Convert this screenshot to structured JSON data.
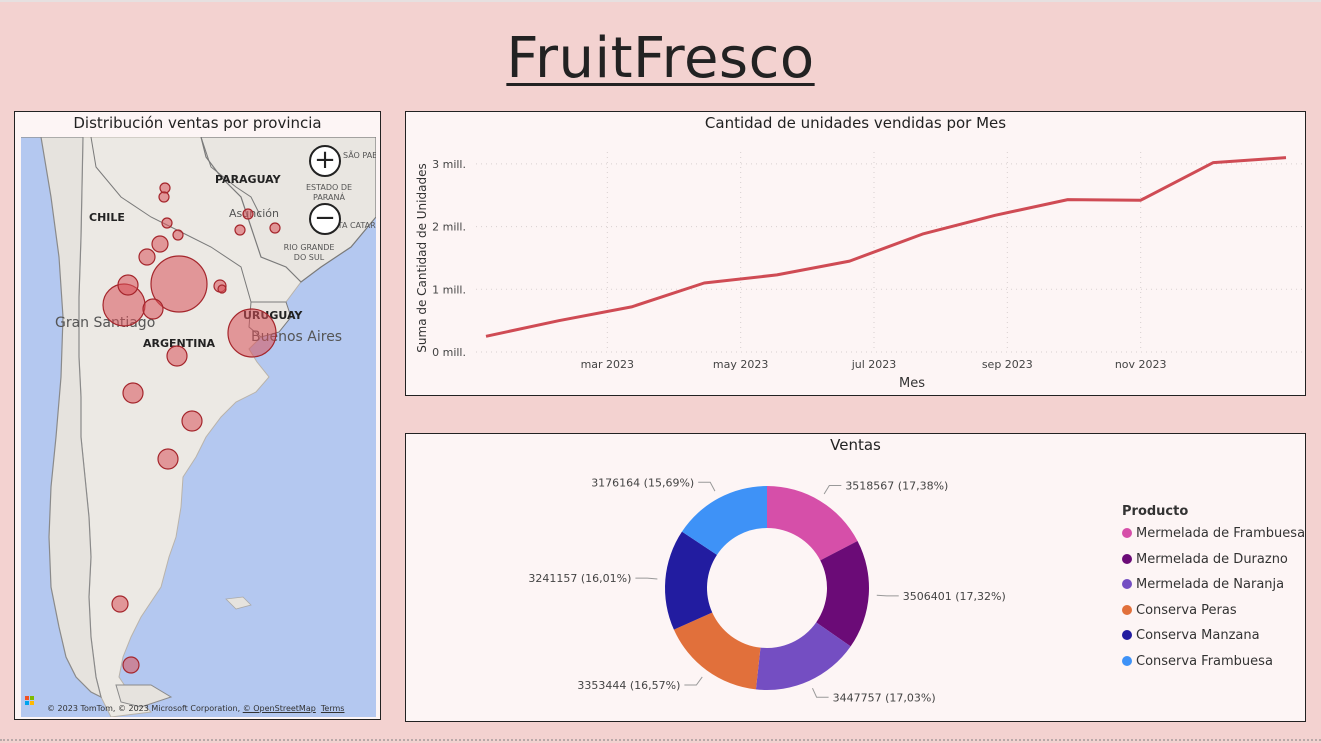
{
  "header": {
    "title": "FruitFresco"
  },
  "map": {
    "title": "Distribución ventas por provincia",
    "zoom_in": "+",
    "zoom_out": "−",
    "labels": {
      "paraguay": "PARAGUAY",
      "chile": "CHILE",
      "argentina": "ARGENTINA",
      "uruguay": "URUGUAY",
      "asuncion": "Asunción",
      "gran_santiago": "Gran Santiago",
      "buenos_aires": "Buenos Aires",
      "estado_parana": "ESTADO DE PARANÁ",
      "santa_catarina": "SANTA CATARINA",
      "rio_grande": "RIO GRANDE DO SUL",
      "sao_paulo": "SÃO PABLO"
    },
    "attribution": "© 2023 TomTom, © 2023 Microsoft Corporation, ",
    "osm_link": "© OpenStreetMap",
    "terms_link": "Terms",
    "bubble_color": "#d9525a"
  },
  "chart_data": [
    {
      "type": "line",
      "title": "Cantidad de unidades vendidas por Mes",
      "xlabel": "Mes",
      "ylabel": "Suma de Cantidad de Unidades",
      "x": [
        "2023-01",
        "2023-02",
        "2023-03",
        "2023-04",
        "2023-05",
        "2023-06",
        "2023-07",
        "2023-08",
        "2023-09",
        "2023-10",
        "2023-11",
        "2023-12",
        "2024-01"
      ],
      "values": [
        0.25,
        0.5,
        0.72,
        1.1,
        1.23,
        1.45,
        1.88,
        2.18,
        2.43,
        2.42,
        3.02,
        3.1,
        null
      ],
      "xticks": [
        "mar 2023",
        "may 2023",
        "jul 2023",
        "sep 2023",
        "nov 2023"
      ],
      "yticks": [
        "0 mill.",
        "1 mill.",
        "2 mill.",
        "3 mill."
      ],
      "ylim": [
        0,
        3.0
      ],
      "grid": true,
      "color": "#cf4b54"
    },
    {
      "type": "pie",
      "title": "Ventas",
      "legend_title": "Producto",
      "legend_position": "right",
      "slices": [
        {
          "name": "Mermelada de Frambuesa",
          "value": 3518567,
          "label": "3518567 (17,38%)",
          "color": "#d64fa9"
        },
        {
          "name": "Mermelada de Durazno",
          "value": 3506401,
          "label": "3506401 (17,32%)",
          "color": "#6b0b77"
        },
        {
          "name": "Mermelada de Naranja",
          "value": 3447757,
          "label": "3447757 (17,03%)",
          "color": "#744ec2"
        },
        {
          "name": "Conserva Peras",
          "value": 3353444,
          "label": "3353444 (16,57%)",
          "color": "#e1703b"
        },
        {
          "name": "Conserva Manzana",
          "value": 3241157,
          "label": "3241157 (16,01%)",
          "color": "#221ca0"
        },
        {
          "name": "Conserva Frambuesa",
          "value": 3176164,
          "label": "3176164 (15,69%)",
          "color": "#3e92f7"
        }
      ]
    }
  ]
}
